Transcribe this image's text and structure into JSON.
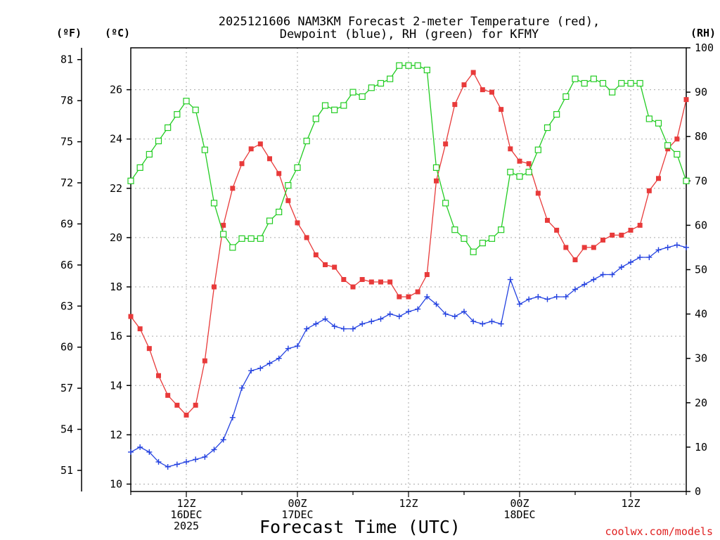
{
  "chart_data": {
    "type": "line",
    "title": [
      "2025121606 NAM3KM Forecast 2-meter Temperature (red),",
      "Dewpoint (blue), RH (green) for KFMY"
    ],
    "xlabel": "Forecast Time (UTC)",
    "credit": "coolwx.com/models",
    "units": {
      "left_f": "(ºF)",
      "left_c": "(ºC)",
      "right_rh": "(RH)"
    },
    "x_hours": {
      "start": 6,
      "end": 66,
      "step": 1
    },
    "x_ticks": [
      {
        "hour": 12,
        "lines": [
          "12Z",
          "16DEC",
          "2025"
        ]
      },
      {
        "hour": 24,
        "lines": [
          "00Z",
          "17DEC"
        ]
      },
      {
        "hour": 36,
        "lines": [
          "12Z"
        ]
      },
      {
        "hour": 48,
        "lines": [
          "00Z",
          "18DEC"
        ]
      },
      {
        "hour": 60,
        "lines": [
          "12Z"
        ]
      }
    ],
    "y_celsius": {
      "range": [
        9.7,
        27.7
      ],
      "ticks": [
        "10",
        "12",
        "14",
        "16",
        "18",
        "20",
        "22",
        "24",
        "26"
      ],
      "tick_values": [
        10,
        12,
        14,
        16,
        18,
        20,
        22,
        24,
        26
      ]
    },
    "y_fahrenheit": {
      "ticks": [
        "51",
        "54",
        "57",
        "60",
        "63",
        "66",
        "69",
        "72",
        "75",
        "78",
        "81"
      ],
      "tick_values": [
        51,
        54,
        57,
        60,
        63,
        66,
        69,
        72,
        75,
        78,
        81
      ]
    },
    "y_rh": {
      "range": [
        0,
        100
      ],
      "ticks": [
        "0",
        "10",
        "20",
        "30",
        "40",
        "50",
        "60",
        "70",
        "80",
        "90",
        "100"
      ],
      "tick_values": [
        0,
        10,
        20,
        30,
        40,
        50,
        60,
        70,
        80,
        90,
        100
      ]
    },
    "series": [
      {
        "name": "2-meter Temperature",
        "axis": "celsius",
        "color": "#e83a3a",
        "marker": "filled-square",
        "values": [
          16.8,
          16.3,
          15.5,
          14.4,
          13.6,
          13.2,
          12.8,
          13.2,
          15.0,
          18.0,
          20.5,
          22.0,
          23.0,
          23.6,
          23.8,
          23.2,
          22.6,
          21.5,
          20.6,
          20.0,
          19.3,
          18.9,
          18.8,
          18.3,
          18.0,
          18.3,
          18.2,
          18.2,
          18.2,
          17.6,
          17.6,
          17.8,
          18.5,
          22.3,
          23.8,
          25.4,
          26.2,
          26.7,
          26.0,
          25.9,
          25.2,
          23.6,
          23.1,
          23.0,
          21.8,
          20.7,
          20.3,
          19.6,
          19.1,
          19.6,
          19.6,
          19.9,
          20.1,
          20.1,
          20.3,
          20.5,
          21.9,
          22.4,
          23.6,
          24.0,
          25.6
        ]
      },
      {
        "name": "Dewpoint",
        "axis": "celsius",
        "color": "#2442e0",
        "marker": "plus",
        "values": [
          11.3,
          11.5,
          11.3,
          10.9,
          10.7,
          10.8,
          10.9,
          11.0,
          11.1,
          11.4,
          11.8,
          12.7,
          13.9,
          14.6,
          14.7,
          14.9,
          15.1,
          15.5,
          15.6,
          16.3,
          16.5,
          16.7,
          16.4,
          16.3,
          16.3,
          16.5,
          16.6,
          16.7,
          16.9,
          16.8,
          17.0,
          17.1,
          17.6,
          17.3,
          16.9,
          16.8,
          17.0,
          16.6,
          16.5,
          16.6,
          16.5,
          18.3,
          17.3,
          17.5,
          17.6,
          17.5,
          17.6,
          17.6,
          17.9,
          18.1,
          18.3,
          18.5,
          18.5,
          18.8,
          19.0,
          19.2,
          19.2,
          19.5,
          19.6,
          19.7,
          19.6
        ]
      },
      {
        "name": "RH",
        "axis": "rh",
        "color": "#22cc22",
        "marker": "open-square",
        "values": [
          70,
          73,
          76,
          79,
          82,
          85,
          88,
          86,
          77,
          65,
          58,
          55,
          57,
          57,
          57,
          61,
          63,
          69,
          73,
          79,
          84,
          87,
          86,
          87,
          90,
          89,
          91,
          92,
          93,
          96,
          96,
          96,
          95,
          73,
          65,
          59,
          57,
          54,
          56,
          57,
          59,
          72,
          71,
          72,
          77,
          82,
          85,
          89,
          93,
          92,
          93,
          92,
          90,
          92,
          92,
          92,
          84,
          83,
          78,
          76,
          70
        ]
      }
    ]
  }
}
